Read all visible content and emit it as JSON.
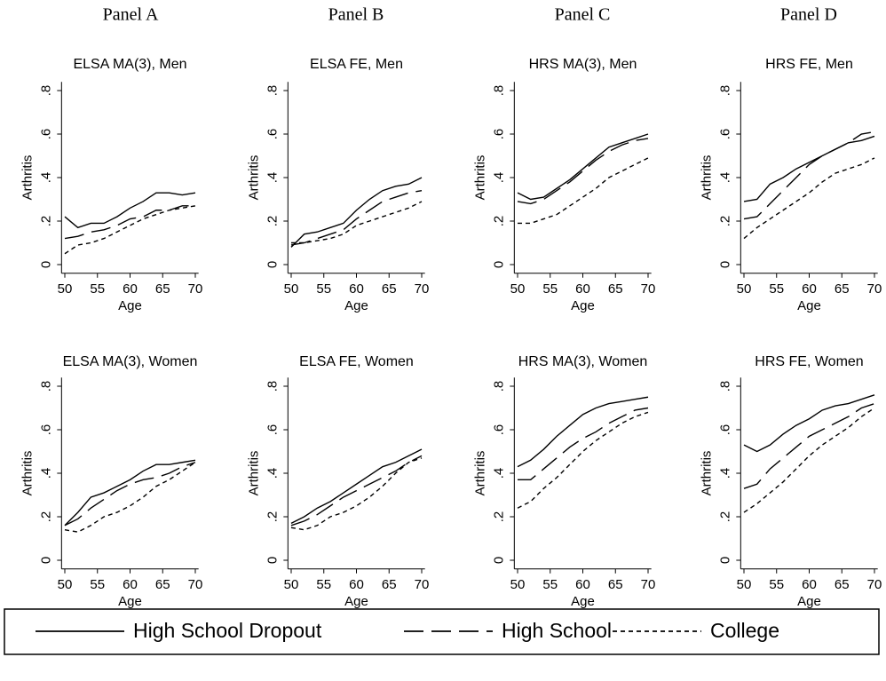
{
  "panel_labels": [
    "Panel A",
    "Panel B",
    "Panel C",
    "Panel D"
  ],
  "legend": [
    {
      "name": "High School Dropout",
      "dash": "none"
    },
    {
      "name": "High School",
      "dash": "22 9"
    },
    {
      "name": "College",
      "dash": "5 4"
    }
  ],
  "chart_data": [
    {
      "type": "line",
      "title": "ELSA MA(3), Men",
      "xlabel": "Age",
      "ylabel": "Arthritis",
      "x": [
        50,
        52,
        54,
        56,
        58,
        60,
        62,
        64,
        66,
        68,
        70
      ],
      "xlim": [
        49.5,
        70.5
      ],
      "ylim": [
        -0.04,
        0.84
      ],
      "xticks": [
        50,
        55,
        60,
        65,
        70
      ],
      "yticks": [
        0,
        {
          "value": 0.2,
          "label": ".2"
        },
        {
          "value": 0.4,
          "label": ".4"
        },
        {
          "value": 0.6,
          "label": ".6"
        },
        {
          "value": 0.8,
          "label": ".8"
        }
      ],
      "series": [
        {
          "values": [
            0.22,
            0.17,
            0.19,
            0.19,
            0.22,
            0.26,
            0.29,
            0.33,
            0.33,
            0.32,
            0.33
          ]
        },
        {
          "values": [
            0.12,
            0.13,
            0.15,
            0.16,
            0.18,
            0.21,
            0.22,
            0.25,
            0.25,
            0.27,
            0.27
          ]
        },
        {
          "values": [
            0.05,
            0.09,
            0.1,
            0.12,
            0.15,
            0.18,
            0.21,
            0.23,
            0.25,
            0.26,
            0.27
          ]
        }
      ]
    },
    {
      "type": "line",
      "title": "ELSA FE, Men",
      "xlabel": "Age",
      "ylabel": "Arthritis",
      "x": [
        50,
        52,
        54,
        56,
        58,
        60,
        62,
        64,
        66,
        68,
        70
      ],
      "xlim": [
        49.5,
        70.5
      ],
      "ylim": [
        -0.04,
        0.84
      ],
      "xticks": [
        50,
        55,
        60,
        65,
        70
      ],
      "yticks": [
        0,
        {
          "value": 0.2,
          "label": ".2"
        },
        {
          "value": 0.4,
          "label": ".4"
        },
        {
          "value": 0.6,
          "label": ".6"
        },
        {
          "value": 0.8,
          "label": ".8"
        }
      ],
      "series": [
        {
          "values": [
            0.08,
            0.14,
            0.15,
            0.17,
            0.19,
            0.25,
            0.3,
            0.34,
            0.36,
            0.37,
            0.4
          ]
        },
        {
          "values": [
            0.09,
            0.1,
            0.12,
            0.14,
            0.16,
            0.21,
            0.25,
            0.29,
            0.31,
            0.33,
            0.34
          ]
        },
        {
          "values": [
            0.1,
            0.1,
            0.11,
            0.12,
            0.14,
            0.18,
            0.2,
            0.22,
            0.24,
            0.26,
            0.29
          ]
        }
      ]
    },
    {
      "type": "line",
      "title": "HRS MA(3), Men",
      "xlabel": "Age",
      "ylabel": "Arthritis",
      "x": [
        50,
        52,
        54,
        56,
        58,
        60,
        62,
        64,
        66,
        68,
        70
      ],
      "xlim": [
        49.5,
        70.5
      ],
      "ylim": [
        -0.04,
        0.84
      ],
      "xticks": [
        50,
        55,
        60,
        65,
        70
      ],
      "yticks": [
        0,
        {
          "value": 0.2,
          "label": ".2"
        },
        {
          "value": 0.4,
          "label": ".4"
        },
        {
          "value": 0.6,
          "label": ".6"
        },
        {
          "value": 0.8,
          "label": ".8"
        }
      ],
      "series": [
        {
          "values": [
            0.33,
            0.3,
            0.31,
            0.35,
            0.39,
            0.44,
            0.49,
            0.54,
            0.56,
            0.58,
            0.6
          ]
        },
        {
          "values": [
            0.29,
            0.28,
            0.3,
            0.34,
            0.38,
            0.43,
            0.48,
            0.52,
            0.55,
            0.57,
            0.58
          ]
        },
        {
          "values": [
            0.19,
            0.19,
            0.21,
            0.23,
            0.27,
            0.31,
            0.35,
            0.4,
            0.43,
            0.46,
            0.49
          ]
        }
      ]
    },
    {
      "type": "line",
      "title": "HRS FE, Men",
      "xlabel": "Age",
      "ylabel": "Arthritis",
      "x": [
        50,
        52,
        54,
        56,
        58,
        60,
        62,
        64,
        66,
        68,
        70
      ],
      "xlim": [
        49.5,
        70.5
      ],
      "ylim": [
        -0.04,
        0.84
      ],
      "xticks": [
        50,
        55,
        60,
        65,
        70
      ],
      "yticks": [
        0,
        {
          "value": 0.2,
          "label": ".2"
        },
        {
          "value": 0.4,
          "label": ".4"
        },
        {
          "value": 0.6,
          "label": ".6"
        },
        {
          "value": 0.8,
          "label": ".8"
        }
      ],
      "series": [
        {
          "values": [
            0.29,
            0.3,
            0.37,
            0.4,
            0.44,
            0.47,
            0.5,
            0.53,
            0.56,
            0.57,
            0.59
          ]
        },
        {
          "values": [
            0.21,
            0.22,
            0.28,
            0.34,
            0.4,
            0.46,
            0.5,
            0.53,
            0.56,
            0.6,
            0.61
          ]
        },
        {
          "values": [
            0.12,
            0.17,
            0.21,
            0.25,
            0.29,
            0.33,
            0.38,
            0.42,
            0.44,
            0.46,
            0.49
          ]
        }
      ]
    },
    {
      "type": "line",
      "title": "ELSA MA(3), Women",
      "xlabel": "Age",
      "ylabel": "Arthritis",
      "x": [
        50,
        52,
        54,
        56,
        58,
        60,
        62,
        64,
        66,
        68,
        70
      ],
      "xlim": [
        49.5,
        70.5
      ],
      "ylim": [
        -0.04,
        0.84
      ],
      "xticks": [
        50,
        55,
        60,
        65,
        70
      ],
      "yticks": [
        0,
        {
          "value": 0.2,
          "label": ".2"
        },
        {
          "value": 0.4,
          "label": ".4"
        },
        {
          "value": 0.6,
          "label": ".6"
        },
        {
          "value": 0.8,
          "label": ".8"
        }
      ],
      "series": [
        {
          "values": [
            0.16,
            0.22,
            0.29,
            0.31,
            0.34,
            0.37,
            0.41,
            0.44,
            0.44,
            0.45,
            0.46
          ]
        },
        {
          "values": [
            0.16,
            0.19,
            0.24,
            0.28,
            0.32,
            0.35,
            0.37,
            0.38,
            0.4,
            0.43,
            0.45
          ]
        },
        {
          "values": [
            0.14,
            0.13,
            0.16,
            0.2,
            0.22,
            0.25,
            0.29,
            0.34,
            0.37,
            0.41,
            0.45
          ]
        }
      ]
    },
    {
      "type": "line",
      "title": "ELSA FE, Women",
      "xlabel": "Age",
      "ylabel": "Arthritis",
      "x": [
        50,
        52,
        54,
        56,
        58,
        60,
        62,
        64,
        66,
        68,
        70
      ],
      "xlim": [
        49.5,
        70.5
      ],
      "ylim": [
        -0.04,
        0.84
      ],
      "xticks": [
        50,
        55,
        60,
        65,
        70
      ],
      "yticks": [
        0,
        {
          "value": 0.2,
          "label": ".2"
        },
        {
          "value": 0.4,
          "label": ".4"
        },
        {
          "value": 0.6,
          "label": ".6"
        },
        {
          "value": 0.8,
          "label": ".8"
        }
      ],
      "series": [
        {
          "values": [
            0.17,
            0.2,
            0.24,
            0.27,
            0.31,
            0.35,
            0.39,
            0.43,
            0.45,
            0.48,
            0.51
          ]
        },
        {
          "values": [
            0.16,
            0.18,
            0.21,
            0.25,
            0.29,
            0.32,
            0.35,
            0.38,
            0.41,
            0.45,
            0.48
          ]
        },
        {
          "values": [
            0.15,
            0.14,
            0.16,
            0.2,
            0.22,
            0.25,
            0.29,
            0.34,
            0.4,
            0.45,
            0.47
          ]
        }
      ]
    },
    {
      "type": "line",
      "title": "HRS MA(3), Women",
      "xlabel": "Age",
      "ylabel": "Arthritis",
      "x": [
        50,
        52,
        54,
        56,
        58,
        60,
        62,
        64,
        66,
        68,
        70
      ],
      "xlim": [
        49.5,
        70.5
      ],
      "ylim": [
        -0.04,
        0.84
      ],
      "xticks": [
        50,
        55,
        60,
        65,
        70
      ],
      "yticks": [
        0,
        {
          "value": 0.2,
          "label": ".2"
        },
        {
          "value": 0.4,
          "label": ".4"
        },
        {
          "value": 0.6,
          "label": ".6"
        },
        {
          "value": 0.8,
          "label": ".8"
        }
      ],
      "series": [
        {
          "values": [
            0.43,
            0.46,
            0.51,
            0.57,
            0.62,
            0.67,
            0.7,
            0.72,
            0.73,
            0.74,
            0.75
          ]
        },
        {
          "values": [
            0.37,
            0.37,
            0.42,
            0.47,
            0.52,
            0.56,
            0.59,
            0.63,
            0.66,
            0.69,
            0.7
          ]
        },
        {
          "values": [
            0.24,
            0.27,
            0.33,
            0.38,
            0.44,
            0.5,
            0.55,
            0.59,
            0.63,
            0.66,
            0.68
          ]
        }
      ]
    },
    {
      "type": "line",
      "title": "HRS FE, Women",
      "xlabel": "Age",
      "ylabel": "Arthritis",
      "x": [
        50,
        52,
        54,
        56,
        58,
        60,
        62,
        64,
        66,
        68,
        70
      ],
      "xlim": [
        49.5,
        70.5
      ],
      "ylim": [
        -0.04,
        0.84
      ],
      "xticks": [
        50,
        55,
        60,
        65,
        70
      ],
      "yticks": [
        0,
        {
          "value": 0.2,
          "label": ".2"
        },
        {
          "value": 0.4,
          "label": ".4"
        },
        {
          "value": 0.6,
          "label": ".6"
        },
        {
          "value": 0.8,
          "label": ".8"
        }
      ],
      "series": [
        {
          "values": [
            0.53,
            0.5,
            0.53,
            0.58,
            0.62,
            0.65,
            0.69,
            0.71,
            0.72,
            0.74,
            0.76
          ]
        },
        {
          "values": [
            0.33,
            0.35,
            0.42,
            0.47,
            0.52,
            0.57,
            0.6,
            0.63,
            0.66,
            0.7,
            0.72
          ]
        },
        {
          "values": [
            0.22,
            0.26,
            0.31,
            0.36,
            0.42,
            0.48,
            0.53,
            0.57,
            0.61,
            0.66,
            0.7
          ]
        }
      ]
    }
  ]
}
